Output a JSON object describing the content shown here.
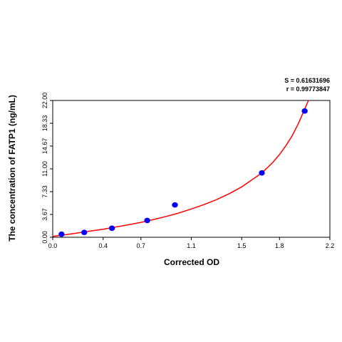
{
  "chart_data": {
    "type": "scatter",
    "title": "",
    "xlabel": "Corrected OD",
    "ylabel": "The concentration of FATP1 (ng/mL)",
    "xlim": [
      0.0,
      2.2
    ],
    "ylim": [
      0.0,
      22.0
    ],
    "x_ticks": [
      "0.0",
      "0.4",
      "0.7",
      "1.1",
      "1.5",
      "1.8",
      "2.2"
    ],
    "y_ticks": [
      "0.00",
      "3.67",
      "7.33",
      "11.00",
      "14.67",
      "18.33",
      "22.00"
    ],
    "grid": false,
    "legend": "none",
    "stats": {
      "s_label": "S = 0.61631696",
      "r_label": "r = 0.99773847"
    },
    "series": [
      {
        "kind": "points",
        "color": "#0000ff",
        "points": [
          {
            "x": 0.07,
            "y": 0.5
          },
          {
            "x": 0.25,
            "y": 0.78
          },
          {
            "x": 0.47,
            "y": 1.45
          },
          {
            "x": 0.75,
            "y": 2.7
          },
          {
            "x": 0.97,
            "y": 5.2
          },
          {
            "x": 1.66,
            "y": 10.35
          },
          {
            "x": 2.0,
            "y": 20.3
          }
        ]
      },
      {
        "kind": "fit-curve",
        "color": "#ff0000",
        "points": [
          {
            "x": 0.0,
            "y": 0.15
          },
          {
            "x": 0.1,
            "y": 0.4
          },
          {
            "x": 0.2,
            "y": 0.7
          },
          {
            "x": 0.3,
            "y": 1.0
          },
          {
            "x": 0.4,
            "y": 1.3
          },
          {
            "x": 0.5,
            "y": 1.65
          },
          {
            "x": 0.6,
            "y": 2.0
          },
          {
            "x": 0.7,
            "y": 2.4
          },
          {
            "x": 0.8,
            "y": 2.85
          },
          {
            "x": 0.9,
            "y": 3.35
          },
          {
            "x": 1.0,
            "y": 3.9
          },
          {
            "x": 1.1,
            "y": 4.55
          },
          {
            "x": 1.2,
            "y": 5.25
          },
          {
            "x": 1.3,
            "y": 6.05
          },
          {
            "x": 1.4,
            "y": 7.0
          },
          {
            "x": 1.5,
            "y": 8.1
          },
          {
            "x": 1.6,
            "y": 9.5
          },
          {
            "x": 1.65,
            "y": 10.2
          },
          {
            "x": 1.7,
            "y": 11.1
          },
          {
            "x": 1.75,
            "y": 12.1
          },
          {
            "x": 1.8,
            "y": 13.3
          },
          {
            "x": 1.85,
            "y": 14.7
          },
          {
            "x": 1.9,
            "y": 16.3
          },
          {
            "x": 1.95,
            "y": 18.3
          },
          {
            "x": 2.0,
            "y": 20.6
          },
          {
            "x": 2.03,
            "y": 22.0
          }
        ]
      }
    ]
  }
}
